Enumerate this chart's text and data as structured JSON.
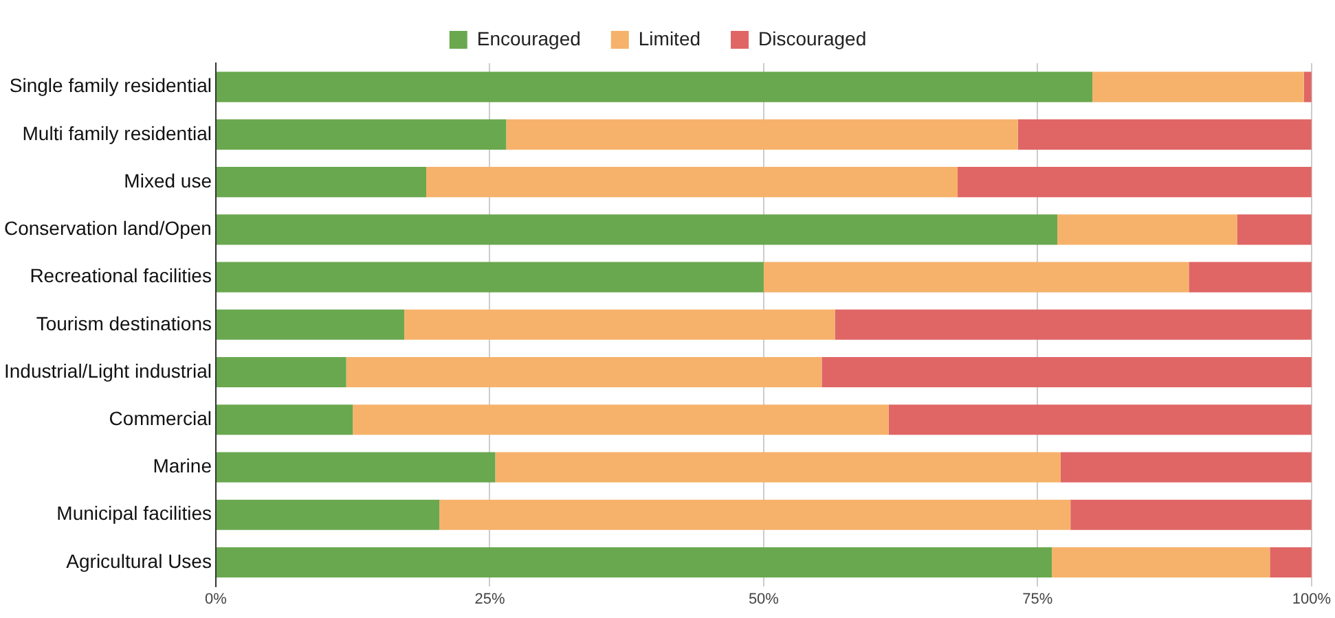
{
  "chart_data": {
    "type": "bar",
    "orientation": "horizontal",
    "stacked": true,
    "categories": [
      "Single family residential",
      "Multi family residential",
      "Mixed use",
      "Conservation land/Open",
      "Recreational facilities",
      "Tourism destinations",
      "Industrial/Light industrial",
      "Commercial",
      "Marine",
      "Municipal facilities",
      "Agricultural Uses"
    ],
    "series": [
      {
        "name": "Encouraged",
        "color": "#6aa84f",
        "values": [
          80,
          26.5,
          19.2,
          76.8,
          50,
          17.2,
          11.9,
          12.5,
          25.5,
          20.4,
          76.3
        ]
      },
      {
        "name": "Limited",
        "color": "#f6b26b",
        "values": [
          19.3,
          46.7,
          48.5,
          16.4,
          38.8,
          39.3,
          43.4,
          48.9,
          51.6,
          57.6,
          19.9
        ]
      },
      {
        "name": "Discouraged",
        "color": "#e06666",
        "values": [
          0.7,
          26.8,
          32.3,
          6.8,
          11.2,
          43.5,
          44.7,
          38.6,
          22.9,
          22,
          3.8
        ]
      }
    ],
    "xlim": [
      0,
      100
    ],
    "xticks": [
      {
        "value": 0,
        "label": "0%"
      },
      {
        "value": 25,
        "label": "25%"
      },
      {
        "value": 50,
        "label": "50%"
      },
      {
        "value": 75,
        "label": "75%"
      },
      {
        "value": 100,
        "label": "100%"
      }
    ],
    "grid": "x",
    "legend": "top"
  }
}
